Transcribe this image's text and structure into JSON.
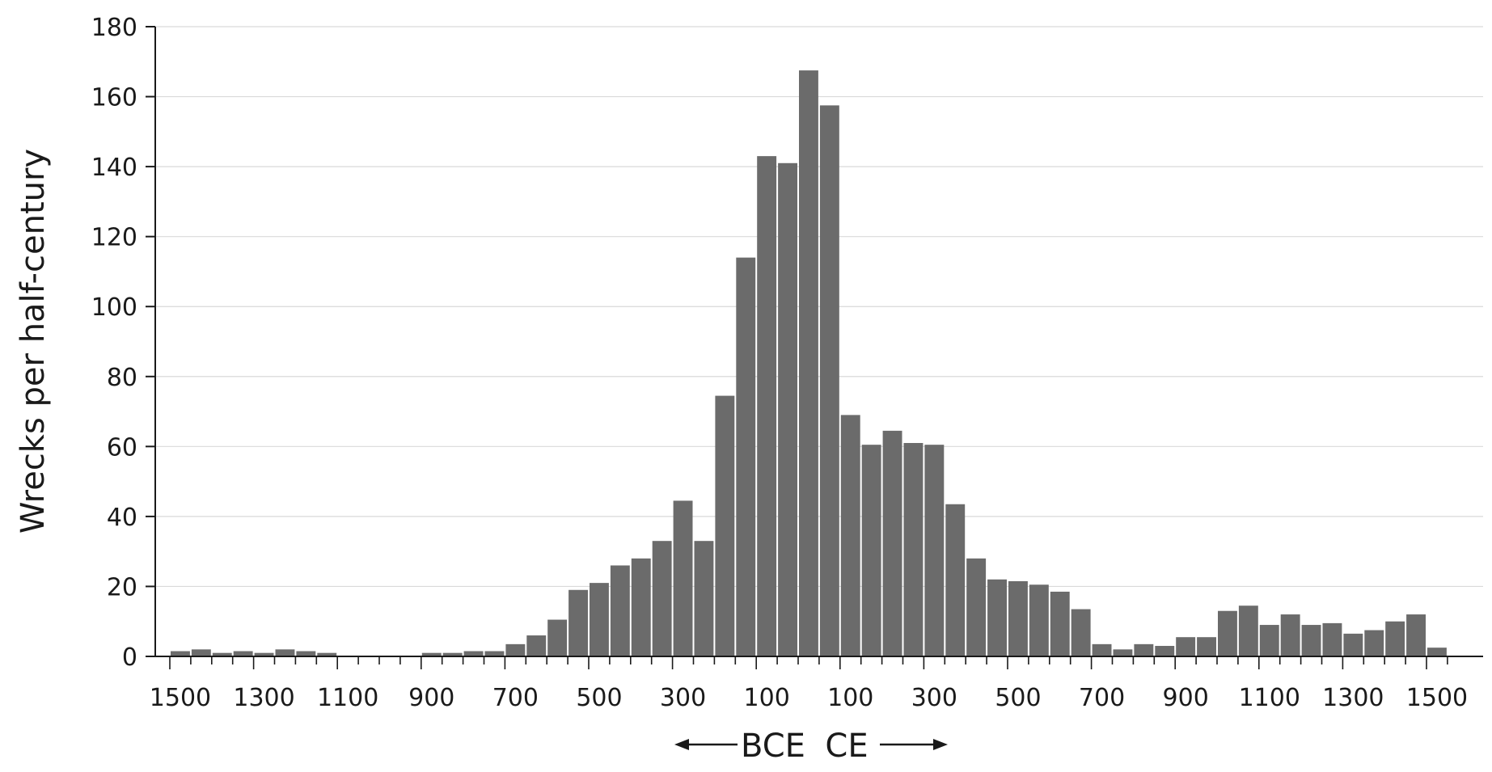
{
  "chart_data": {
    "type": "bar",
    "title": "",
    "xlabel": "",
    "ylabel": "Wrecks per half-century",
    "ylim": [
      0,
      180
    ],
    "yticks": [
      0,
      20,
      40,
      60,
      80,
      100,
      120,
      140,
      160,
      180
    ],
    "grid": "horizontal",
    "bar_color": "#6b6b6b",
    "era_labels": {
      "bce": "BCE",
      "ce": "CE"
    },
    "xticks": [
      {
        "label": "1500",
        "bin": 0
      },
      {
        "label": "1300",
        "bin": 4
      },
      {
        "label": "1100",
        "bin": 8
      },
      {
        "label": "900",
        "bin": 12
      },
      {
        "label": "700",
        "bin": 16
      },
      {
        "label": "500",
        "bin": 20
      },
      {
        "label": "300",
        "bin": 24
      },
      {
        "label": "100",
        "bin": 28
      },
      {
        "label": "100",
        "bin": 32
      },
      {
        "label": "300",
        "bin": 36
      },
      {
        "label": "500",
        "bin": 40
      },
      {
        "label": "700",
        "bin": 44
      },
      {
        "label": "900",
        "bin": 48
      },
      {
        "label": "1100",
        "bin": 52
      },
      {
        "label": "1300",
        "bin": 56
      },
      {
        "label": "1500",
        "bin": 60
      }
    ],
    "values": [
      1.5,
      2,
      1,
      1.5,
      1,
      2,
      1.5,
      1,
      0,
      0,
      0,
      0,
      1,
      1,
      1.5,
      1.5,
      3.5,
      6,
      10.5,
      19,
      21,
      26,
      28,
      33,
      44.5,
      33,
      74.5,
      114,
      143,
      141,
      167.5,
      157.5,
      69,
      60.5,
      64.5,
      61,
      60.5,
      43.5,
      28,
      22,
      21.5,
      20.5,
      18.5,
      13.5,
      3.5,
      2,
      3.5,
      3,
      5.5,
      5.5,
      13,
      14.5,
      9,
      12,
      9,
      9.5,
      6.5,
      7.5,
      10,
      12,
      2.5
    ]
  }
}
